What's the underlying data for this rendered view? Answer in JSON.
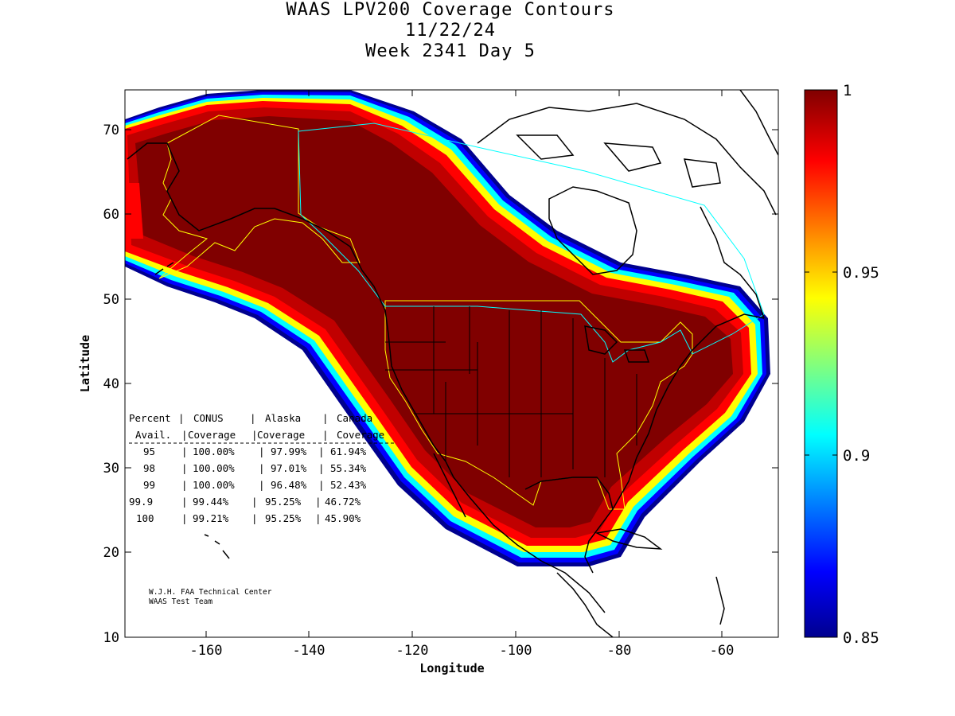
{
  "title": {
    "line1": "WAAS LPV200 Coverage Contours",
    "line2": "11/22/24",
    "line3": "Week 2341 Day 5"
  },
  "axes": {
    "xlabel": "Longitude",
    "ylabel": "Latitude",
    "xticks": [
      "-160",
      "-140",
      "-120",
      "-100",
      "-80",
      "-60"
    ],
    "yticks": [
      "10",
      "20",
      "30",
      "40",
      "50",
      "60",
      "70"
    ]
  },
  "colorbar": {
    "ticks": [
      "1",
      "0.95",
      "0.9",
      "0.85"
    ],
    "range": [
      0.85,
      1.0
    ],
    "colormap": "jet"
  },
  "stats_table": {
    "header1": [
      "Percent",
      "CONUS",
      "Alaska",
      "Canada"
    ],
    "header2": [
      "Avail.",
      "Coverage",
      "Coverage",
      "Coverage"
    ],
    "rows": [
      {
        "percent": "95",
        "conus": "100.00%",
        "alaska": "97.99%",
        "canada": "61.94%"
      },
      {
        "percent": "98",
        "conus": "100.00%",
        "alaska": "97.01%",
        "canada": "55.34%"
      },
      {
        "percent": "99",
        "conus": "100.00%",
        "alaska": "96.48%",
        "canada": "52.43%"
      },
      {
        "percent": "99.9",
        "conus": "99.44%",
        "alaska": "95.25%",
        "canada": "46.72%"
      },
      {
        "percent": "100",
        "conus": "99.21%",
        "alaska": "95.25%",
        "canada": "45.90%"
      }
    ]
  },
  "credit": {
    "line1": "W.J.H. FAA Technical Center",
    "line2": "WAAS Test Team"
  },
  "colors": {
    "coverage_core": "#800000",
    "region_outline": "#ffff00",
    "boundary_outline": "#00ffff",
    "coastline": "#000000"
  }
}
